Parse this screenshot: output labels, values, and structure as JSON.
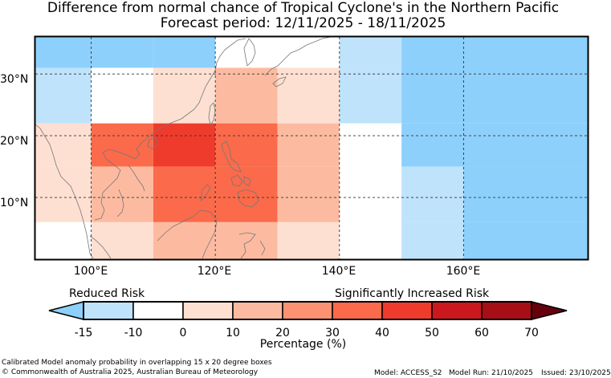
{
  "title": {
    "line1": "Difference from normal chance of Tropical Cyclone's in the Northern Pacific",
    "line2": "Forecast period: 12/11/2025 - 18/11/2025"
  },
  "map": {
    "lat_labels": [
      "30°N",
      "20°N",
      "10°N"
    ],
    "lon_labels": [
      "100°E",
      "120°E",
      "140°E",
      "160°E"
    ],
    "extent": {
      "lon_min": 91,
      "lon_max": 180,
      "lat_min": 0,
      "lat_max": 36
    },
    "gridlines": {
      "lons": [
        100,
        120,
        140,
        160
      ],
      "lats": [
        10,
        20,
        30
      ]
    },
    "land_color": "#ffffff",
    "coast_color": "#777777",
    "cells": [
      {
        "lon0": 91,
        "lon1": 100,
        "lat0": 31,
        "lat1": 36,
        "value": -15
      },
      {
        "lon0": 100,
        "lon1": 110,
        "lat0": 31,
        "lat1": 36,
        "value": -15
      },
      {
        "lon0": 110,
        "lon1": 120,
        "lat0": 31,
        "lat1": 36,
        "value": -15
      },
      {
        "lon0": 120,
        "lon1": 130,
        "lat0": 31,
        "lat1": 36,
        "value": 0
      },
      {
        "lon0": 130,
        "lon1": 140,
        "lat0": 31,
        "lat1": 36,
        "value": 0
      },
      {
        "lon0": 140,
        "lon1": 150,
        "lat0": 31,
        "lat1": 36,
        "value": -10
      },
      {
        "lon0": 150,
        "lon1": 180,
        "lat0": 31,
        "lat1": 36,
        "value": -15
      },
      {
        "lon0": 91,
        "lon1": 100,
        "lat0": 22,
        "lat1": 31,
        "value": -10
      },
      {
        "lon0": 100,
        "lon1": 110,
        "lat0": 22,
        "lat1": 31,
        "value": 0
      },
      {
        "lon0": 110,
        "lon1": 120,
        "lat0": 22,
        "lat1": 31,
        "value": 10
      },
      {
        "lon0": 120,
        "lon1": 130,
        "lat0": 22,
        "lat1": 31,
        "value": 20
      },
      {
        "lon0": 130,
        "lon1": 140,
        "lat0": 22,
        "lat1": 31,
        "value": 10
      },
      {
        "lon0": 140,
        "lon1": 150,
        "lat0": 22,
        "lat1": 31,
        "value": -10
      },
      {
        "lon0": 150,
        "lon1": 180,
        "lat0": 22,
        "lat1": 31,
        "value": -15
      },
      {
        "lon0": 91,
        "lon1": 100,
        "lat0": 15,
        "lat1": 22,
        "value": 10
      },
      {
        "lon0": 100,
        "lon1": 110,
        "lat0": 15,
        "lat1": 22,
        "value": 30
      },
      {
        "lon0": 110,
        "lon1": 120,
        "lat0": 15,
        "lat1": 22,
        "value": 40
      },
      {
        "lon0": 120,
        "lon1": 130,
        "lat0": 15,
        "lat1": 22,
        "value": 30
      },
      {
        "lon0": 130,
        "lon1": 140,
        "lat0": 15,
        "lat1": 22,
        "value": 20
      },
      {
        "lon0": 140,
        "lon1": 150,
        "lat0": 15,
        "lat1": 22,
        "value": 0
      },
      {
        "lon0": 150,
        "lon1": 180,
        "lat0": 15,
        "lat1": 22,
        "value": -15
      },
      {
        "lon0": 91,
        "lon1": 100,
        "lat0": 6,
        "lat1": 15,
        "value": 10
      },
      {
        "lon0": 100,
        "lon1": 110,
        "lat0": 6,
        "lat1": 15,
        "value": 20
      },
      {
        "lon0": 110,
        "lon1": 120,
        "lat0": 6,
        "lat1": 15,
        "value": 30
      },
      {
        "lon0": 120,
        "lon1": 130,
        "lat0": 6,
        "lat1": 15,
        "value": 30
      },
      {
        "lon0": 130,
        "lon1": 140,
        "lat0": 6,
        "lat1": 15,
        "value": 20
      },
      {
        "lon0": 140,
        "lon1": 150,
        "lat0": 6,
        "lat1": 15,
        "value": 0
      },
      {
        "lon0": 150,
        "lon1": 160,
        "lat0": 6,
        "lat1": 15,
        "value": -10
      },
      {
        "lon0": 160,
        "lon1": 180,
        "lat0": 6,
        "lat1": 15,
        "value": -15
      },
      {
        "lon0": 91,
        "lon1": 100,
        "lat0": 0,
        "lat1": 6,
        "value": 0
      },
      {
        "lon0": 100,
        "lon1": 110,
        "lat0": 0,
        "lat1": 6,
        "value": 10
      },
      {
        "lon0": 110,
        "lon1": 120,
        "lat0": 0,
        "lat1": 6,
        "value": 20
      },
      {
        "lon0": 120,
        "lon1": 130,
        "lat0": 0,
        "lat1": 6,
        "value": 20
      },
      {
        "lon0": 130,
        "lon1": 140,
        "lat0": 0,
        "lat1": 6,
        "value": 10
      },
      {
        "lon0": 140,
        "lon1": 150,
        "lat0": 0,
        "lat1": 6,
        "value": 0
      },
      {
        "lon0": 150,
        "lon1": 160,
        "lat0": 0,
        "lat1": 6,
        "value": -10
      },
      {
        "lon0": 160,
        "lon1": 180,
        "lat0": 0,
        "lat1": 6,
        "value": -15
      }
    ]
  },
  "legend": {
    "reduced_label": "Reduced Risk",
    "increased_label": "Significantly Increased Risk",
    "axis_label": "Percentage (%)",
    "ticks": [
      "-15",
      "-10",
      "0",
      "10",
      "20",
      "30",
      "40",
      "50",
      "60",
      "70"
    ],
    "bins": [
      {
        "from": -15,
        "to": -10,
        "color": "#bfe3fb"
      },
      {
        "from": -10,
        "to": 0,
        "color": "#ffffff"
      },
      {
        "from": 0,
        "to": 10,
        "color": "#fee0d2"
      },
      {
        "from": 10,
        "to": 20,
        "color": "#fcbba1"
      },
      {
        "from": 20,
        "to": 30,
        "color": "#fc9272"
      },
      {
        "from": 30,
        "to": 40,
        "color": "#fb6a4a"
      },
      {
        "from": 40,
        "to": 50,
        "color": "#ef3b2c"
      },
      {
        "from": 50,
        "to": 60,
        "color": "#cb181d"
      },
      {
        "from": 60,
        "to": 70,
        "color": "#a50f15"
      }
    ],
    "under_color": "#8ed0fc",
    "over_color": "#67000d"
  },
  "footer": {
    "note": "Calibrated Model anomaly probability in overlapping 15 x 20 degree boxes",
    "copyright": "© Commonwealth of Australia 2025, Australian Bureau of Meteorology",
    "model": "Model: ACCESS_S2",
    "model_run": "Model Run: 21/10/2025",
    "issued": "Issued: 23/10/2025"
  }
}
